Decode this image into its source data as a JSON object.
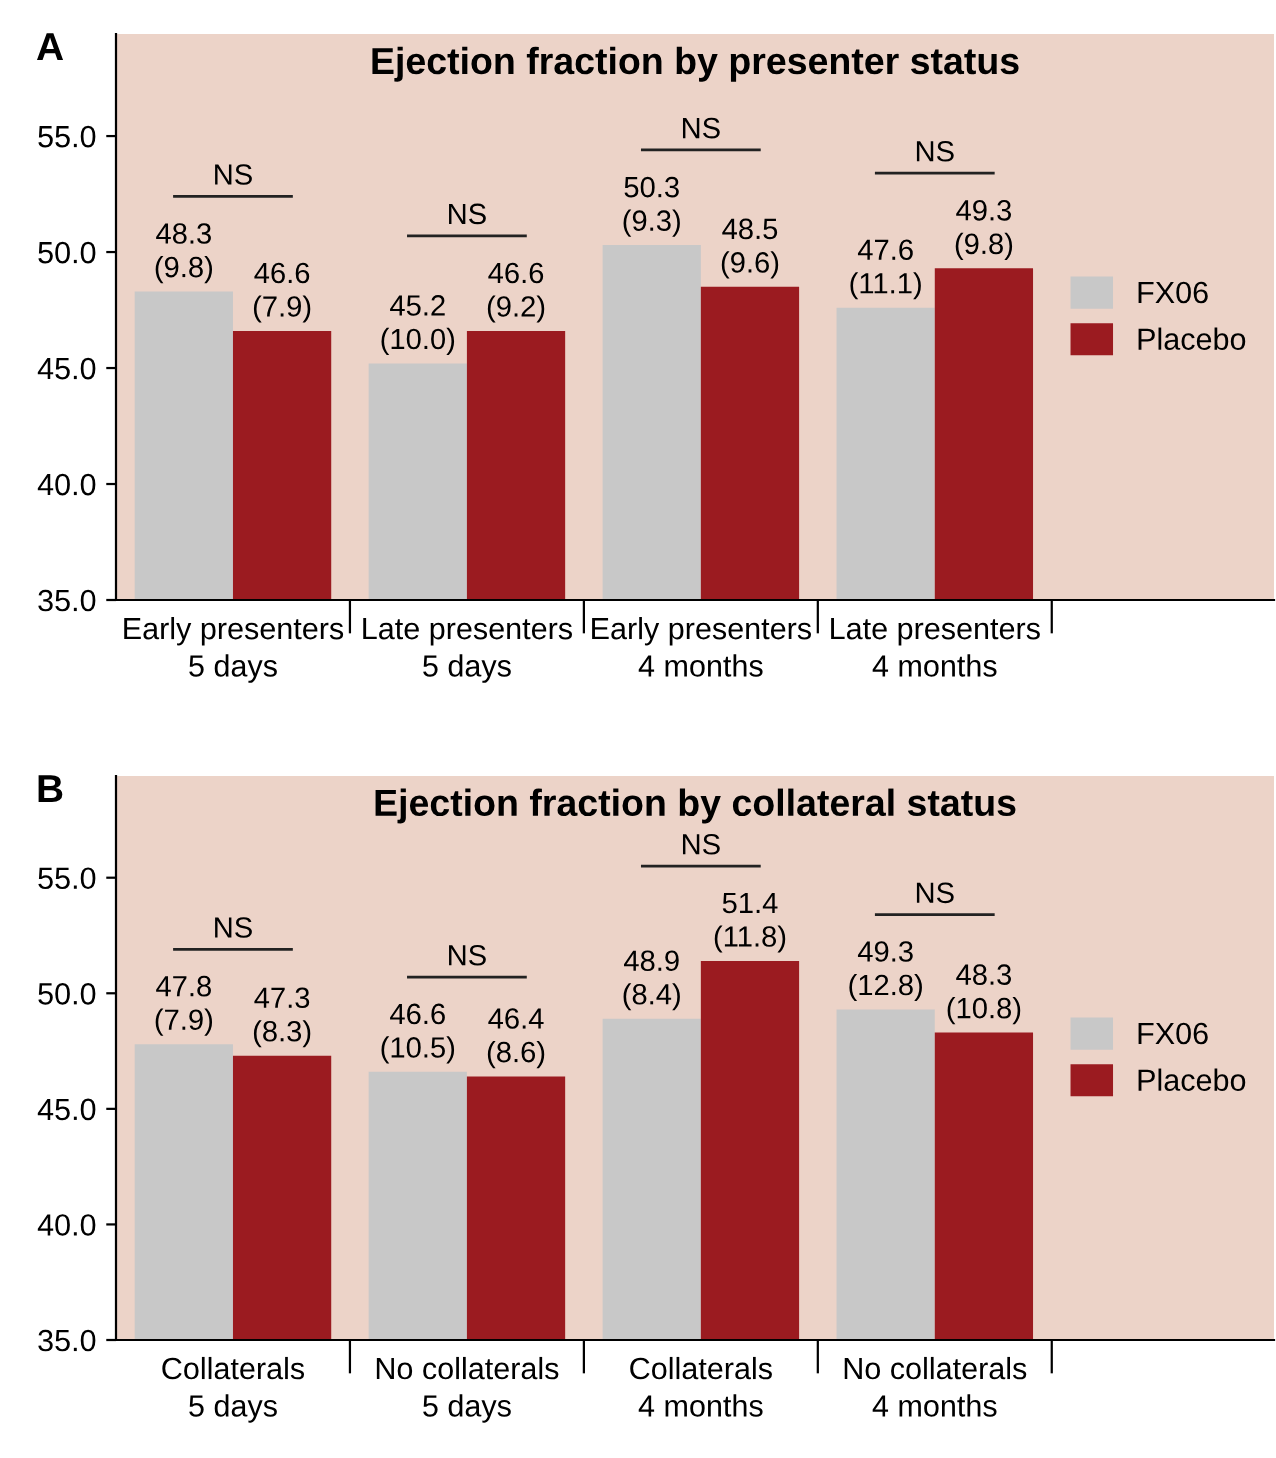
{
  "chart_data": [
    {
      "type": "bar",
      "title": "Ejection fraction by presenter status",
      "categories": [
        "Early presenters\n5 days",
        "Late presenters\n5 days",
        "Early presenters\n4 months",
        "Late presenters\n4 months"
      ],
      "series": [
        {
          "name": "FX06",
          "color": "#c8c8c8",
          "values": [
            48.3,
            45.2,
            50.3,
            47.6
          ],
          "value_labels": [
            "48.3\n(9.8)",
            "45.2\n(10.0)",
            "50.3\n(9.3)",
            "47.6\n(11.1)"
          ]
        },
        {
          "name": "Placebo",
          "color": "#9b1b20",
          "values": [
            46.6,
            46.6,
            48.5,
            49.3
          ],
          "value_labels": [
            "46.6\n(7.9)",
            "46.6\n(9.2)",
            "48.5\n(9.6)",
            "49.3\n(9.8)"
          ]
        }
      ],
      "ylim": [
        35,
        59.4
      ],
      "yticks": [
        {
          "value": 35,
          "label": "35.0"
        },
        {
          "value": 40,
          "label": "40.0"
        },
        {
          "value": 45,
          "label": "45.0"
        },
        {
          "value": 50,
          "label": "50.0"
        },
        {
          "value": 55,
          "label": "55.0"
        }
      ],
      "legend": "right",
      "annotations": [
        "A",
        "NS",
        "NS",
        "NS",
        "NS"
      ]
    },
    {
      "type": "bar",
      "title": "Ejection fraction by collateral status",
      "categories": [
        "Collaterals\n5 days",
        "No collaterals\n5 days",
        "Collaterals\n4 months",
        "No collaterals\n4 months"
      ],
      "series": [
        {
          "name": "FX06",
          "color": "#c8c8c8",
          "values": [
            47.8,
            46.6,
            48.9,
            49.3
          ],
          "value_labels": [
            "47.8\n(7.9)",
            "46.6\n(10.5)",
            "48.9\n(8.4)",
            "49.3\n(12.8)"
          ]
        },
        {
          "name": "Placebo",
          "color": "#9b1b20",
          "values": [
            47.3,
            46.4,
            51.4,
            48.3
          ],
          "value_labels": [
            "47.3\n(8.3)",
            "46.4\n(8.6)",
            "51.4\n(11.8)",
            "48.3\n(10.8)"
          ]
        }
      ],
      "ylim": [
        35,
        59.4
      ],
      "yticks": [
        {
          "value": 35,
          "label": "35.0"
        },
        {
          "value": 40,
          "label": "40.0"
        },
        {
          "value": 45,
          "label": "45.0"
        },
        {
          "value": 50,
          "label": "50.0"
        },
        {
          "value": 55,
          "label": "55.0"
        }
      ],
      "legend": "right",
      "annotations": [
        "B",
        "NS",
        "NS",
        "NS",
        "NS"
      ]
    }
  ]
}
